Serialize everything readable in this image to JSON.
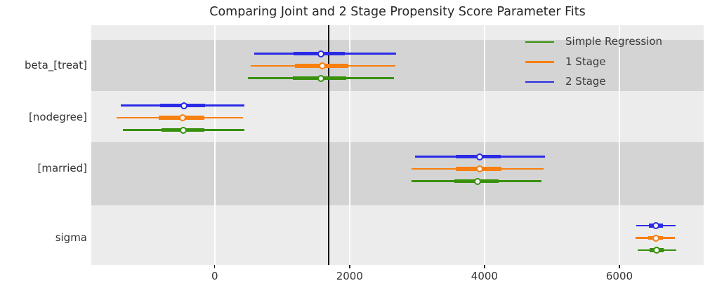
{
  "chart_data": {
    "type": "forest",
    "title": "Comparing Joint and 2 Stage Propensity Score Parameter Fits",
    "xlabel": "",
    "ylabel": "",
    "xlim": [
      -1830,
      7250
    ],
    "x_ticks": [
      0,
      2000,
      4000,
      6000
    ],
    "x_tick_labels": [
      "0",
      "2000",
      "4000",
      "6000"
    ],
    "grid": "white vertical gridlines on gray background, alternating row shading",
    "legend_position": "upper right, no frame",
    "reference_line_x": 1690,
    "legend": [
      {
        "label": "Simple Regression",
        "color": "#38900c"
      },
      {
        "label": "1 Stage",
        "color": "#f97f0e"
      },
      {
        "label": "2 Stage",
        "color": "#2b2be6"
      }
    ],
    "parameters": [
      {
        "label": "beta_[treat]",
        "shaded": true,
        "series": [
          {
            "name": "2 Stage",
            "color": "#2b2be6",
            "median": 1570,
            "ci_outer": [
              590,
              2690
            ],
            "ci_thick": [
              1170,
              1930
            ]
          },
          {
            "name": "1 Stage",
            "color": "#f97f0e",
            "median": 1600,
            "ci_outer": [
              530,
              2680
            ],
            "ci_thick": [
              1190,
              1980
            ]
          },
          {
            "name": "Simple Regression",
            "color": "#38900c",
            "median": 1580,
            "ci_outer": [
              490,
              2660
            ],
            "ci_thick": [
              1160,
              1950
            ]
          }
        ]
      },
      {
        "label": "[nodegree]",
        "shaded": false,
        "series": [
          {
            "name": "2 Stage",
            "color": "#2b2be6",
            "median": -460,
            "ci_outer": [
              -1390,
              440
            ],
            "ci_thick": [
              -810,
              -140
            ]
          },
          {
            "name": "1 Stage",
            "color": "#f97f0e",
            "median": -480,
            "ci_outer": [
              -1450,
              420
            ],
            "ci_thick": [
              -830,
              -150
            ]
          },
          {
            "name": "Simple Regression",
            "color": "#38900c",
            "median": -470,
            "ci_outer": [
              -1360,
              440
            ],
            "ci_thick": [
              -790,
              -150
            ]
          }
        ]
      },
      {
        "label": "[married]",
        "shaded": true,
        "series": [
          {
            "name": "2 Stage",
            "color": "#2b2be6",
            "median": 3930,
            "ci_outer": [
              2970,
              4900
            ],
            "ci_thick": [
              3570,
              4240
            ]
          },
          {
            "name": "1 Stage",
            "color": "#f97f0e",
            "median": 3930,
            "ci_outer": [
              2920,
              4880
            ],
            "ci_thick": [
              3570,
              4250
            ]
          },
          {
            "name": "Simple Regression",
            "color": "#38900c",
            "median": 3900,
            "ci_outer": [
              2920,
              4840
            ],
            "ci_thick": [
              3550,
              4210
            ]
          }
        ]
      },
      {
        "label": "sigma",
        "shaded": false,
        "series": [
          {
            "name": "2 Stage",
            "color": "#2b2be6",
            "median": 6540,
            "ci_outer": [
              6250,
              6830
            ],
            "ci_thick": [
              6440,
              6650
            ]
          },
          {
            "name": "1 Stage",
            "color": "#f97f0e",
            "median": 6540,
            "ci_outer": [
              6240,
              6820
            ],
            "ci_thick": [
              6430,
              6650
            ]
          },
          {
            "name": "Simple Regression",
            "color": "#38900c",
            "median": 6550,
            "ci_outer": [
              6270,
              6840
            ],
            "ci_thick": [
              6450,
              6660
            ]
          }
        ]
      }
    ]
  }
}
